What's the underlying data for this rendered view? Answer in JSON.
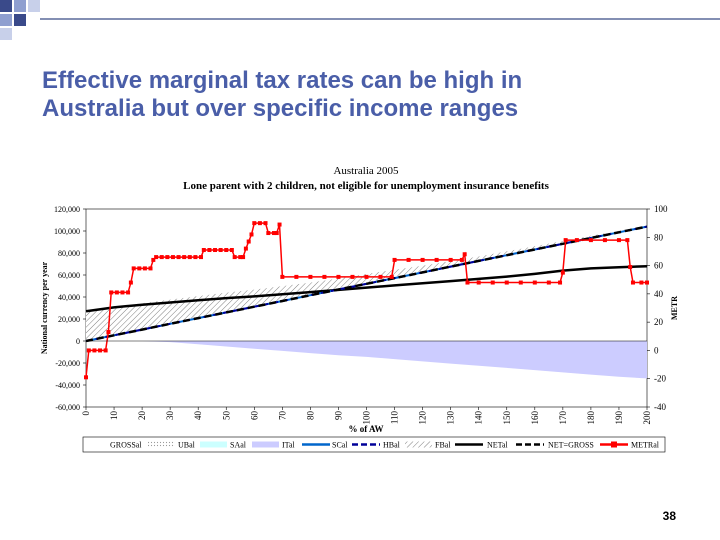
{
  "slide": {
    "title_lines": [
      "Effective marginal tax rates can be high in",
      "Australia but over specific income ranges"
    ],
    "page_number": "38"
  },
  "chart_data": {
    "type": "line",
    "title": "Australia 2005",
    "subtitle": "Lone parent with 2 children, not eligible for unemployment insurance benefits",
    "x_label": "% of AW",
    "y_label": "National currency per year",
    "y2_label": "METR",
    "x": [
      0,
      10,
      20,
      30,
      40,
      50,
      60,
      70,
      80,
      90,
      100,
      110,
      120,
      130,
      140,
      150,
      160,
      170,
      180,
      190,
      200
    ],
    "xlim": [
      0,
      200
    ],
    "xticks": [
      0,
      10,
      20,
      30,
      40,
      50,
      60,
      70,
      80,
      90,
      100,
      110,
      120,
      130,
      140,
      150,
      160,
      170,
      180,
      190,
      200
    ],
    "ylim": [
      -60000,
      120000
    ],
    "yticks": [
      {
        "value": -60000,
        "label": "-60,000"
      },
      {
        "value": -40000,
        "label": "-40,000"
      },
      {
        "value": -20000,
        "label": "-20,000"
      },
      0,
      {
        "value": 20000,
        "label": "20,000"
      },
      {
        "value": 40000,
        "label": "40,000"
      },
      {
        "value": 60000,
        "label": "60,000"
      },
      {
        "value": 80000,
        "label": "80,000"
      },
      {
        "value": 100000,
        "label": "100,000"
      },
      {
        "value": 120000,
        "label": "120,000"
      }
    ],
    "y2lim": [
      -40,
      100
    ],
    "y2ticks": [
      -40,
      -20,
      0,
      20,
      40,
      60,
      80,
      100
    ],
    "series": [
      {
        "name": "GROSSal",
        "color": "#ffffff",
        "kind": "line",
        "values": [
          0,
          5200,
          10400,
          15600,
          20800,
          26000,
          31200,
          36400,
          41600,
          46800,
          52000,
          57200,
          62400,
          67600,
          72800,
          78000,
          83200,
          88400,
          93600,
          98800,
          104000
        ]
      },
      {
        "name": "UBal",
        "color": "#999999",
        "kind": "stack-area",
        "pattern": "dots",
        "values": [
          0,
          0,
          0,
          0,
          0,
          0,
          0,
          0,
          0,
          0,
          0,
          0,
          0,
          0,
          0,
          0,
          0,
          0,
          0,
          0,
          0
        ]
      },
      {
        "name": "SAal",
        "color": "#ccffff",
        "kind": "stack-area",
        "values": [
          0,
          0,
          0,
          0,
          0,
          0,
          0,
          0,
          0,
          0,
          0,
          0,
          0,
          0,
          0,
          0,
          0,
          0,
          0,
          0,
          0
        ]
      },
      {
        "name": "ITal",
        "color": "#ccccff",
        "kind": "area",
        "values": [
          0,
          0,
          0,
          -1000,
          -3000,
          -5000,
          -7000,
          -9000,
          -11000,
          -13000,
          -14500,
          -16500,
          -18500,
          -20500,
          -22500,
          -24500,
          -26500,
          -28500,
          -30500,
          -32500,
          -34000
        ]
      },
      {
        "name": "SCal",
        "color": "#0066cc",
        "kind": "stack-line",
        "values": [
          0,
          0,
          0,
          0,
          0,
          0,
          0,
          0,
          0,
          0,
          0,
          0,
          0,
          0,
          0,
          0,
          0,
          0,
          0,
          0,
          0
        ]
      },
      {
        "name": "HBal",
        "color": "#000099",
        "kind": "stack-line",
        "dashed": true,
        "values": [
          0,
          0,
          0,
          0,
          0,
          0,
          0,
          0,
          0,
          0,
          0,
          0,
          0,
          0,
          0,
          0,
          0,
          0,
          0,
          0,
          0
        ]
      },
      {
        "name": "FBal",
        "color": "#808080",
        "kind": "stack-area",
        "pattern": "hatch",
        "values": [
          27000,
          25500,
          24000,
          22000,
          20000,
          18000,
          15500,
          13500,
          11500,
          10000,
          9000,
          7500,
          6000,
          5000,
          4000,
          3500,
          3000,
          2500,
          2000,
          1500,
          1000
        ]
      },
      {
        "name": "NETal",
        "color": "#000000",
        "kind": "line",
        "values": [
          27000,
          30500,
          33000,
          35000,
          37000,
          39000,
          40500,
          42500,
          44500,
          46500,
          48500,
          50500,
          52500,
          54500,
          56500,
          58500,
          61000,
          64000,
          66000,
          67000,
          68000
        ]
      },
      {
        "name": "NET=GROSS",
        "color": "#000000",
        "kind": "line",
        "dashed": true,
        "values": [
          0,
          5200,
          10400,
          15600,
          20800,
          26000,
          31200,
          36400,
          41600,
          46800,
          52000,
          57200,
          62400,
          67600,
          72800,
          78000,
          83200,
          88400,
          93600,
          98800,
          104000
        ]
      },
      {
        "name": "METRal",
        "color": "#ff0000",
        "kind": "marker-line",
        "axis": "y2",
        "x": [
          0,
          1,
          3,
          5,
          7,
          8,
          9,
          11,
          13,
          15,
          16,
          17,
          19,
          21,
          23,
          24,
          25,
          27,
          29,
          31,
          33,
          35,
          37,
          39,
          41,
          42,
          44,
          46,
          48,
          50,
          52,
          53,
          55,
          56,
          57,
          58,
          59,
          60,
          62,
          64,
          65,
          67,
          68,
          69,
          70,
          75,
          80,
          85,
          90,
          95,
          100,
          105,
          109,
          110,
          115,
          120,
          125,
          130,
          134,
          135,
          136,
          140,
          145,
          150,
          155,
          160,
          165,
          169,
          170,
          171,
          175,
          180,
          185,
          190,
          193,
          194,
          195,
          198,
          200
        ],
        "values": [
          -19,
          0,
          0,
          0,
          0,
          13,
          41,
          41,
          41,
          41,
          48,
          58,
          58,
          58,
          58,
          64,
          66,
          66,
          66,
          66,
          66,
          66,
          66,
          66,
          66,
          71,
          71,
          71,
          71,
          71,
          71,
          66,
          66,
          66,
          72,
          77,
          82,
          90,
          90,
          90,
          83,
          83,
          83,
          89,
          52,
          52,
          52,
          52,
          52,
          52,
          52,
          52,
          52,
          64,
          64,
          64,
          64,
          64,
          64,
          68,
          48,
          48,
          48,
          48,
          48,
          48,
          48,
          48,
          55,
          78,
          78,
          78,
          78,
          78,
          78,
          59,
          48,
          48,
          48
        ]
      }
    ]
  }
}
